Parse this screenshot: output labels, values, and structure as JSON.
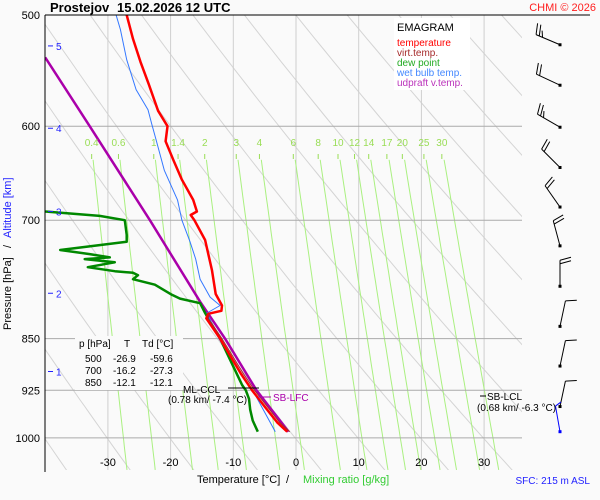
{
  "header": {
    "station": "Prostejov",
    "datetime": "15.02.2026 12 UTC",
    "copyright": "CHMI © 2026"
  },
  "legend": {
    "title": "EMAGRAM",
    "items": [
      {
        "label": "temperature",
        "color": "#ff0000"
      },
      {
        "label": "virt.temp.",
        "color": "#a52a2a"
      },
      {
        "label": "dew point",
        "color": "#008800"
      },
      {
        "label": "wet bulb temp.",
        "color": "#3377ff"
      },
      {
        "label": "udpraft v.temp.",
        "color": "#aa00aa"
      }
    ]
  },
  "table": {
    "headers": [
      "p [hPa]",
      "T",
      "Td [°C]"
    ],
    "rows": [
      [
        "500",
        "-26.9",
        "-59.6"
      ],
      [
        "700",
        "-16.2",
        "-27.3"
      ],
      [
        "850",
        "-12.1",
        "-12.1"
      ]
    ]
  },
  "annotations": {
    "ml_ccl": {
      "label": "ML-CCL",
      "detail": "(0.78 km/ -7.4 °C)"
    },
    "sb_lfc": {
      "label": "SB-LFC"
    },
    "sb_lcl": {
      "label": "SB-LCL",
      "detail": "(0.68 km/ -6.3 °C)"
    }
  },
  "footer": {
    "sfc": "SFC: 215 m ASL"
  },
  "chart_data": {
    "type": "line",
    "title": "EMAGRAM",
    "xlabel": "Temperature [°C]",
    "xlabel2": "Mixing ratio [g/kg]",
    "ylabel": "Pressure [hPa]",
    "ylabel2": "Altitude [km]",
    "y_scale": "log",
    "xlim": [
      -40,
      36
    ],
    "ylim": [
      1000,
      500
    ],
    "x_ticks": [
      "-30",
      "-20",
      "-10",
      "0",
      "10",
      "20",
      "30"
    ],
    "y_ticks": [
      "500",
      "600",
      "700",
      "850",
      "925",
      "1000"
    ],
    "altitude_ticks": [
      {
        "label": "5",
        "p": 526
      },
      {
        "label": "4",
        "p": 602
      },
      {
        "label": "3",
        "p": 690
      },
      {
        "label": "2",
        "p": 789
      },
      {
        "label": "1",
        "p": 897
      }
    ],
    "mixing_ratio_labels": [
      "0.4",
      "0.6",
      "1",
      "1.4",
      "2",
      "3",
      "4",
      "6",
      "8",
      "10",
      "12",
      "14",
      "17",
      "20",
      "25",
      "30"
    ],
    "series": [
      {
        "name": "temperature",
        "color": "#ff0000",
        "points": [
          [
            500,
            -27
          ],
          [
            520,
            -26
          ],
          [
            540,
            -24.8
          ],
          [
            560,
            -23.5
          ],
          [
            585,
            -22
          ],
          [
            600,
            -20.5
          ],
          [
            615,
            -20.8
          ],
          [
            635,
            -19.5
          ],
          [
            655,
            -18.2
          ],
          [
            677,
            -16.4
          ],
          [
            690,
            -15.8
          ],
          [
            694,
            -16.8
          ],
          [
            700,
            -16.2
          ],
          [
            723,
            -14.5
          ],
          [
            760,
            -13.4
          ],
          [
            790,
            -12.8
          ],
          [
            805,
            -11.8
          ],
          [
            812,
            -11.9
          ],
          [
            816,
            -14
          ],
          [
            822,
            -14.3
          ],
          [
            850,
            -12.1
          ],
          [
            900,
            -8.8
          ],
          [
            925,
            -7.0
          ],
          [
            950,
            -5.0
          ],
          [
            975,
            -3.0
          ],
          [
            990,
            -1.4
          ]
        ]
      },
      {
        "name": "virt.temp.",
        "color": "#a52a2a",
        "points": [
          [
            816,
            -13.8
          ],
          [
            822,
            -14.0
          ],
          [
            850,
            -11.8
          ],
          [
            900,
            -8.4
          ],
          [
            925,
            -6.6
          ],
          [
            950,
            -4.6
          ],
          [
            975,
            -2.6
          ],
          [
            990,
            -1.0
          ]
        ]
      },
      {
        "name": "dew point",
        "color": "#008800",
        "points": [
          [
            500,
            -59.6
          ],
          [
            600,
            -52
          ],
          [
            685,
            -45
          ],
          [
            690,
            -40
          ],
          [
            695,
            -31.3
          ],
          [
            700,
            -27.3
          ],
          [
            717,
            -27
          ],
          [
            725,
            -27
          ],
          [
            735,
            -37.6
          ],
          [
            740,
            -32.9
          ],
          [
            744,
            -29.7
          ],
          [
            746,
            -33.7
          ],
          [
            750,
            -28.9
          ],
          [
            756,
            -33.2
          ],
          [
            761,
            -28.9
          ],
          [
            763,
            -26
          ],
          [
            766,
            -25.2
          ],
          [
            771,
            -26
          ],
          [
            778,
            -22.5
          ],
          [
            791,
            -19.8
          ],
          [
            796,
            -18.5
          ],
          [
            802,
            -15.3
          ],
          [
            815,
            -14.5
          ],
          [
            850,
            -12.1
          ],
          [
            917,
            -8.6
          ],
          [
            925,
            -8.0
          ],
          [
            938,
            -7.5
          ],
          [
            955,
            -7.3
          ],
          [
            972,
            -6.9
          ],
          [
            990,
            -6.1
          ]
        ]
      },
      {
        "name": "wet bulb temp.",
        "color": "#3377ff",
        "points": [
          [
            500,
            -28.7
          ],
          [
            512,
            -28
          ],
          [
            538,
            -27
          ],
          [
            565,
            -25.5
          ],
          [
            584,
            -23.6
          ],
          [
            598,
            -23
          ],
          [
            614,
            -22.3
          ],
          [
            645,
            -21
          ],
          [
            677,
            -18.9
          ],
          [
            700,
            -18.2
          ],
          [
            725,
            -16.9
          ],
          [
            746,
            -16
          ],
          [
            771,
            -15.3
          ],
          [
            794,
            -13.7
          ],
          [
            805,
            -12.1
          ],
          [
            815,
            -14.2
          ],
          [
            850,
            -12.3
          ],
          [
            925,
            -6.9
          ],
          [
            990,
            -3.3
          ]
        ]
      },
      {
        "name": "udpraft v.temp.",
        "color": "#aa00aa",
        "points": [
          [
            536,
            -40
          ],
          [
            600,
            -32.9
          ],
          [
            700,
            -23.3
          ],
          [
            800,
            -15.3
          ],
          [
            850,
            -11.3
          ],
          [
            925,
            -6.3
          ],
          [
            990,
            -1.2
          ]
        ]
      }
    ],
    "wind_barbs": [
      {
        "p": 525,
        "dir": 293,
        "kt": 25,
        "color": "#000000"
      },
      {
        "p": 561,
        "dir": 295,
        "kt": 20,
        "color": "#000000"
      },
      {
        "p": 601,
        "dir": 300,
        "kt": 25,
        "color": "#000000"
      },
      {
        "p": 642,
        "dir": 315,
        "kt": 20,
        "color": "#000000"
      },
      {
        "p": 685,
        "dir": 325,
        "kt": 20,
        "color": "#000000"
      },
      {
        "p": 730,
        "dir": 345,
        "kt": 20,
        "color": "#000000"
      },
      {
        "p": 780,
        "dir": 360,
        "kt": 20,
        "color": "#000000"
      },
      {
        "p": 833,
        "dir": 12,
        "kt": 10,
        "color": "#000000"
      },
      {
        "p": 889,
        "dir": 12,
        "kt": 10,
        "color": "#000000"
      },
      {
        "p": 950,
        "dir": 12,
        "kt": 10,
        "color": "#000000"
      },
      {
        "p": 990,
        "dir": 350,
        "kt": 5,
        "color": "#0000ff"
      }
    ]
  }
}
